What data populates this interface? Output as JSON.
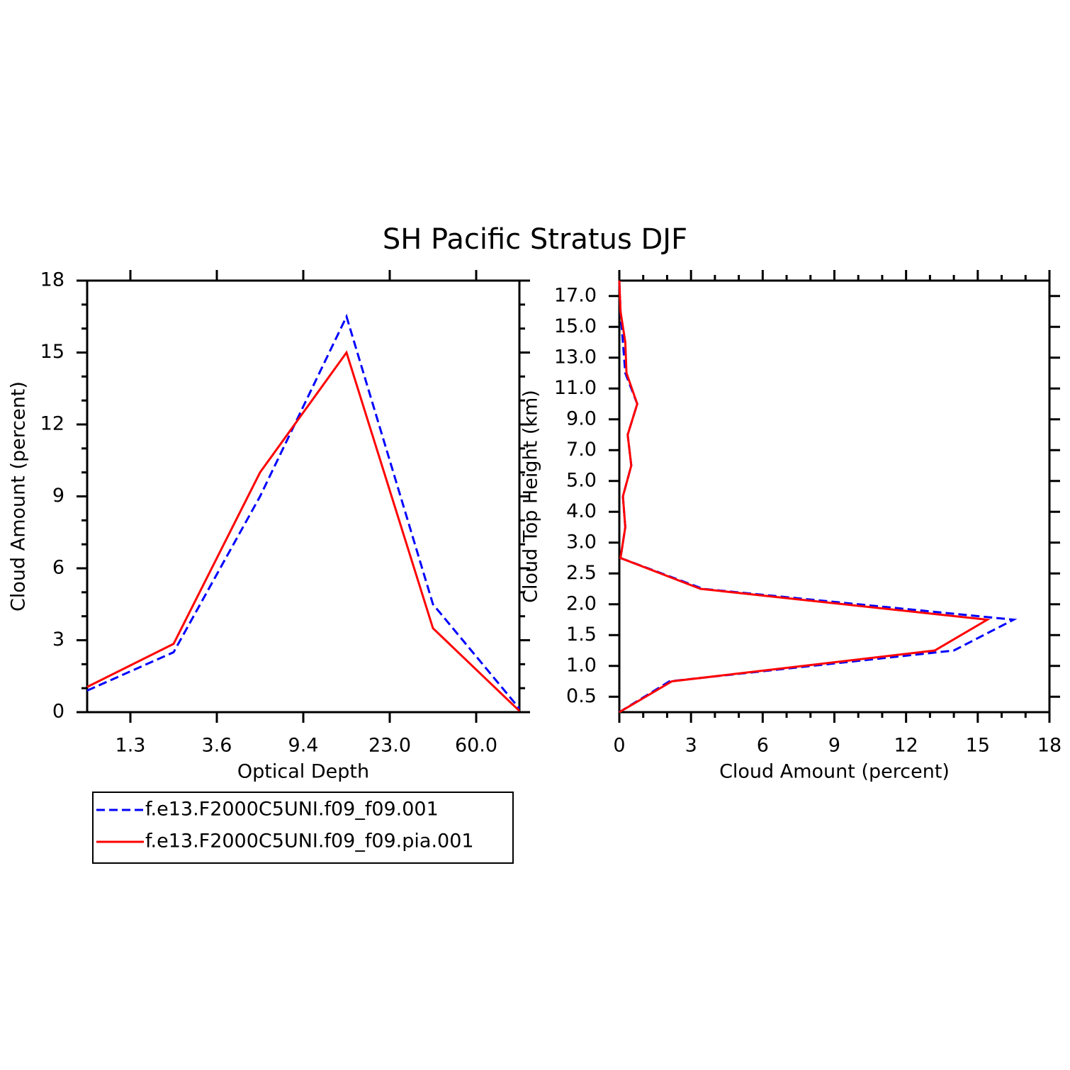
{
  "title": "SH Pacific Stratus DJF",
  "chart_data": [
    {
      "type": "line",
      "xlabel": "Optical Depth",
      "ylabel": "Cloud Amount (percent)",
      "x": [
        0,
        1,
        2,
        3,
        4,
        5
      ],
      "xlim": [
        0,
        5
      ],
      "xticks": [
        {
          "value": 0.5,
          "label": "1.3"
        },
        {
          "value": 1.5,
          "label": "3.6"
        },
        {
          "value": 2.5,
          "label": "9.4"
        },
        {
          "value": 3.5,
          "label": "23.0"
        },
        {
          "value": 4.5,
          "label": "60.0"
        }
      ],
      "ylim": [
        0,
        18
      ],
      "yticks": [
        0,
        3,
        6,
        9,
        12,
        15,
        18
      ],
      "series": [
        {
          "name": "f.e13.F2000C5UNI.f09_f09.001",
          "color": "#0000ff",
          "dashed": true,
          "values": [
            0.9,
            2.5,
            9.0,
            16.5,
            4.5,
            0.15
          ]
        },
        {
          "name": "f.e13.F2000C5UNI.f09_f09.pia.001",
          "color": "#ff0000",
          "dashed": false,
          "values": [
            1.05,
            2.85,
            10.0,
            15.0,
            3.5,
            0.05
          ]
        }
      ]
    },
    {
      "type": "line",
      "xlabel": "Cloud Amount (percent)",
      "ylabel": "Cloud Top Height (km)",
      "y": [
        0,
        1,
        2,
        3,
        4,
        5,
        6,
        7,
        8,
        9,
        10,
        11,
        12,
        13,
        14
      ],
      "ylim": [
        0,
        14
      ],
      "yticks": [
        {
          "value": 0.5,
          "label": "0.5"
        },
        {
          "value": 1.5,
          "label": "1.0"
        },
        {
          "value": 2.5,
          "label": "1.5"
        },
        {
          "value": 3.5,
          "label": "2.0"
        },
        {
          "value": 4.5,
          "label": "2.5"
        },
        {
          "value": 5.5,
          "label": "3.0"
        },
        {
          "value": 6.5,
          "label": "4.0"
        },
        {
          "value": 7.5,
          "label": "5.0"
        },
        {
          "value": 8.5,
          "label": "7.0"
        },
        {
          "value": 9.5,
          "label": "9.0"
        },
        {
          "value": 10.5,
          "label": "11.0"
        },
        {
          "value": 11.5,
          "label": "13.0"
        },
        {
          "value": 12.5,
          "label": "15.0"
        },
        {
          "value": 13.5,
          "label": "17.0"
        }
      ],
      "xlim": [
        0,
        18
      ],
      "xticks": [
        0,
        3,
        6,
        9,
        12,
        15,
        18
      ],
      "series": [
        {
          "color": "#0000ff",
          "dashed": true,
          "values": [
            0,
            2.1,
            14.0,
            16.5,
            3.5,
            0.05,
            0.25,
            0.15,
            0.5,
            0.35,
            0.75,
            0.25,
            0.15,
            0.05,
            0
          ]
        },
        {
          "color": "#ff0000",
          "dashed": false,
          "values": [
            0,
            2.2,
            13.2,
            15.4,
            3.4,
            0.05,
            0.25,
            0.15,
            0.5,
            0.35,
            0.75,
            0.3,
            0.25,
            0.05,
            0
          ]
        }
      ]
    }
  ]
}
